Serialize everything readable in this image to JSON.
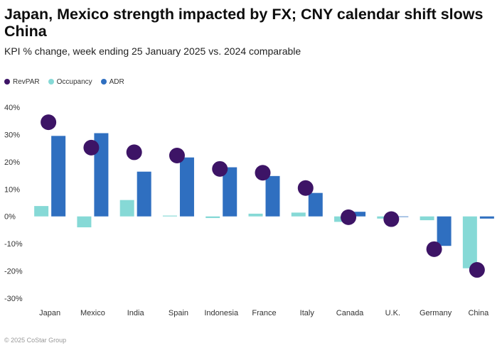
{
  "title": "Japan, Mexico strength impacted by FX; CNY calendar shift slows China",
  "subtitle": "KPI % change, week ending 25 January 2025 vs. 2024 comparable",
  "footer": "© 2025 CoStar Group",
  "colors": {
    "RevPAR": "#3d1466",
    "Occupancy": "#86d9d6",
    "ADR": "#2f6fc0"
  },
  "chart_data": {
    "type": "bar",
    "categories": [
      "Japan",
      "Mexico",
      "India",
      "Spain",
      "Indonesia",
      "France",
      "Italy",
      "Canada",
      "U.K.",
      "Germany",
      "China"
    ],
    "series": [
      {
        "name": "RevPAR",
        "render": "dot",
        "values": [
          34.5,
          25.2,
          23.5,
          22.3,
          17.4,
          16.0,
          10.4,
          -0.3,
          -1.0,
          -12.0,
          -19.6
        ]
      },
      {
        "name": "Occupancy",
        "render": "bar",
        "values": [
          3.8,
          -4.0,
          6.0,
          0.3,
          -0.6,
          1.0,
          1.4,
          -2.0,
          -0.8,
          -1.4,
          -19.0
        ]
      },
      {
        "name": "ADR",
        "render": "bar",
        "values": [
          29.5,
          30.5,
          16.4,
          21.6,
          18.0,
          14.8,
          8.6,
          1.7,
          -0.2,
          -10.8,
          -0.8
        ]
      }
    ],
    "yticks": [
      -30,
      -20,
      -10,
      0,
      10,
      20,
      30,
      40
    ],
    "ytick_labels": [
      "-30%",
      "-20%",
      "-10%",
      "0%",
      "10%",
      "20%",
      "30%",
      "40%"
    ],
    "ylim": [
      -30,
      40
    ],
    "grid": false,
    "legend_position": "top-left"
  }
}
